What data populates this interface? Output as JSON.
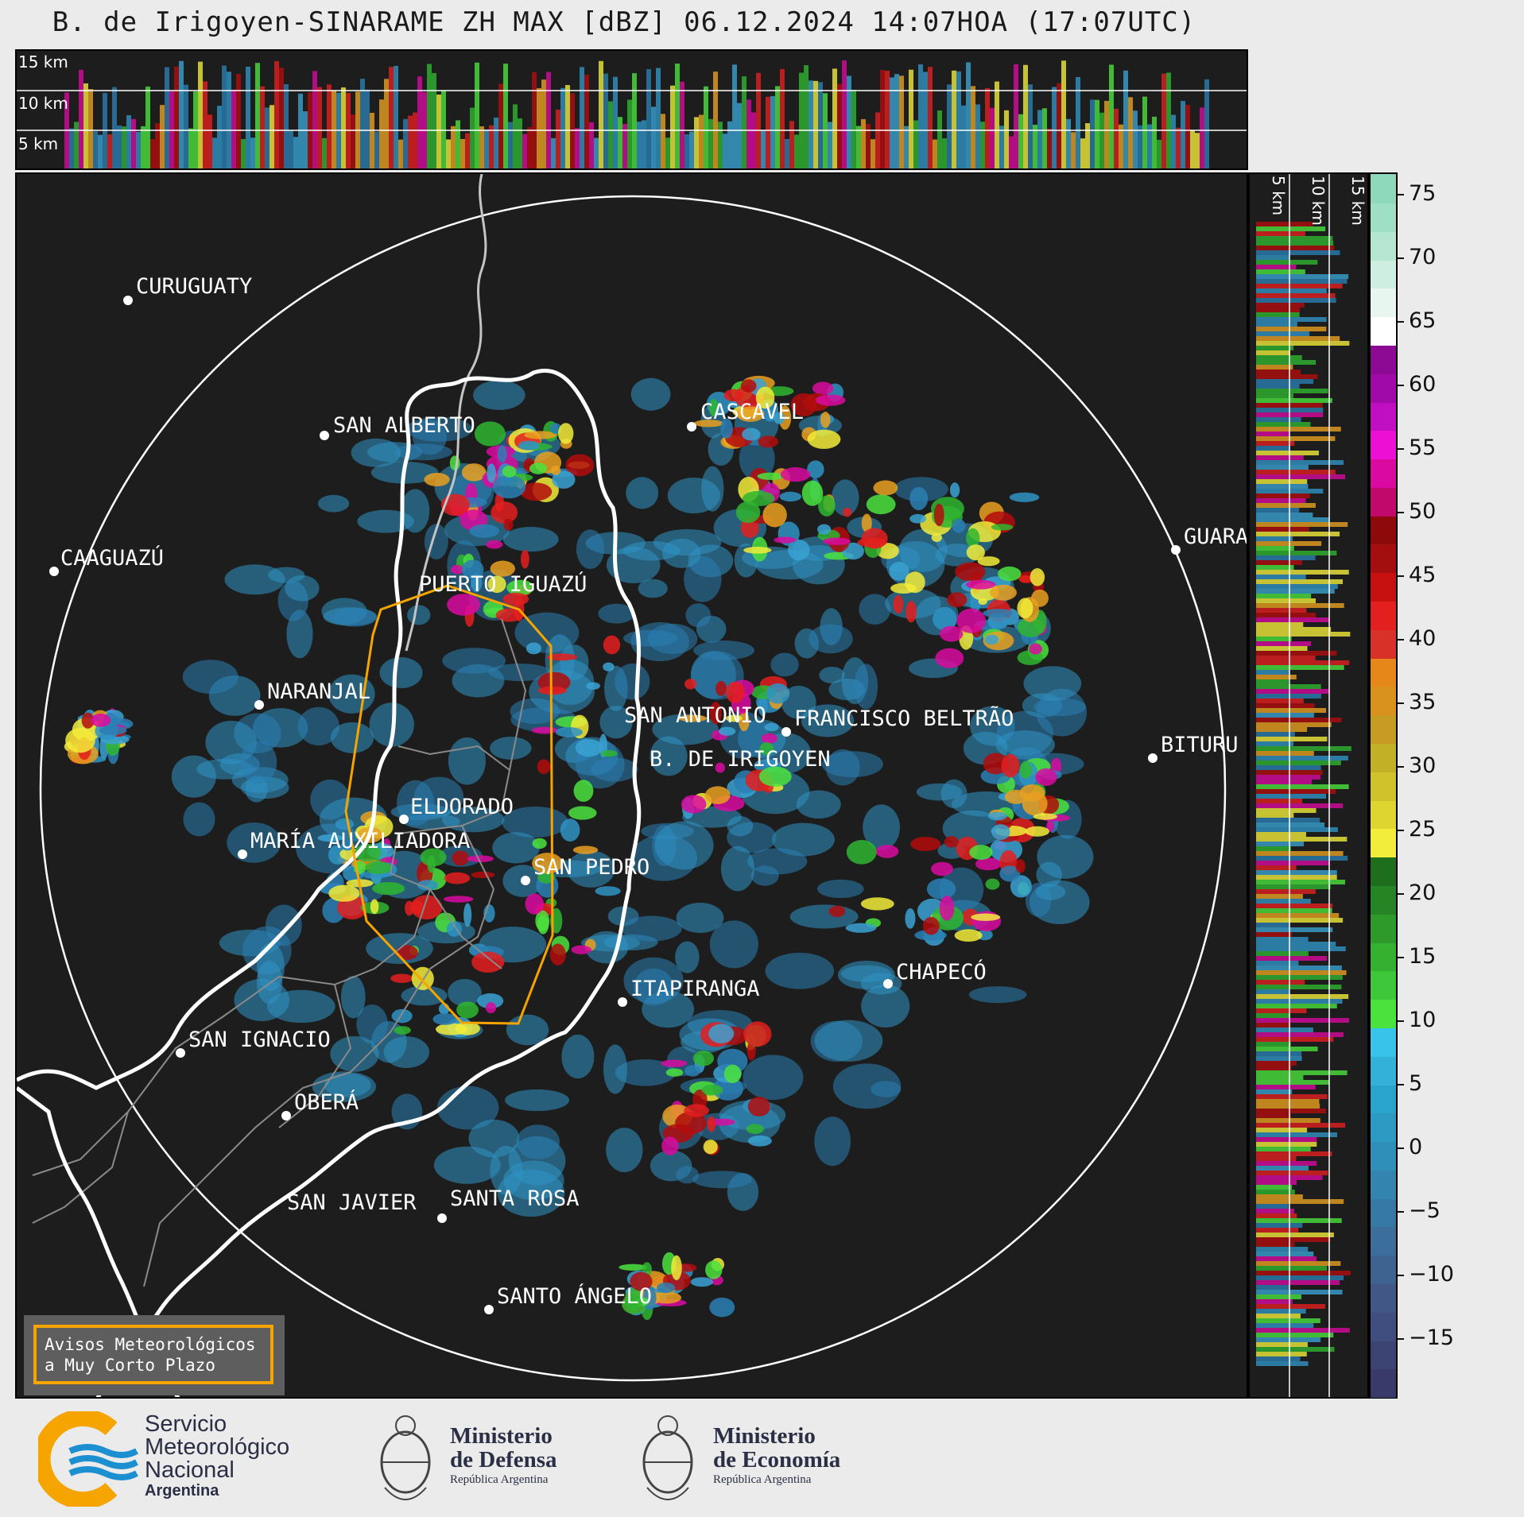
{
  "title": "B. de Irigoyen-SINARAME ZH MAX [dBZ] 06.12.2024 14:07HOA (17:07UTC)",
  "altitude_labels": [
    "15 km",
    "10 km",
    "5 km"
  ],
  "colorbar": {
    "ticks": [
      "75",
      "70",
      "65",
      "60",
      "55",
      "50",
      "45",
      "40",
      "35",
      "30",
      "25",
      "20",
      "15",
      "10",
      "5",
      "0",
      "−5",
      "−10",
      "−15"
    ],
    "unit": "dBZ"
  },
  "places": [
    {
      "name": "CURUGUATY"
    },
    {
      "name": "SAN ALBERTO"
    },
    {
      "name": "CASCAVEL"
    },
    {
      "name": "CAAGUAZÚ"
    },
    {
      "name": "PUERTO IGUAZÚ"
    },
    {
      "name": "GUARA"
    },
    {
      "name": "NARANJAL"
    },
    {
      "name": "SAN ANTONIO"
    },
    {
      "name": "FRANCISCO BELTRÃO"
    },
    {
      "name": "B. DE IRIGOYEN"
    },
    {
      "name": "BITURU"
    },
    {
      "name": "ELDORADO"
    },
    {
      "name": "MARÍA AUXILIADORA"
    },
    {
      "name": "SAN PEDRO"
    },
    {
      "name": "ITAPIRANGA"
    },
    {
      "name": "CHAPECÓ"
    },
    {
      "name": "SAN IGNACIO"
    },
    {
      "name": "OBERÁ"
    },
    {
      "name": "SAN JAVIER"
    },
    {
      "name": "SANTA ROSA"
    },
    {
      "name": "SANTO ÁNGELO"
    }
  ],
  "alert_box": {
    "line1": "Avisos Meteorológicos",
    "line2": "a Muy Corto Plazo"
  },
  "footer": {
    "smn": {
      "line1": "Servicio",
      "line2": "Meteorológico",
      "line3": "Nacional",
      "line4": "Argentina"
    },
    "defensa": {
      "line1": "Ministerio",
      "line2": "de Defensa",
      "line3": "República Argentina"
    },
    "economia": {
      "line1": "Ministerio",
      "line2": "de Economía",
      "line3": "República Argentina"
    }
  },
  "colors": {
    "accent_orange": "#f5a400",
    "background": "#1d1d1d",
    "smn_blue": "#1c8fd0"
  }
}
